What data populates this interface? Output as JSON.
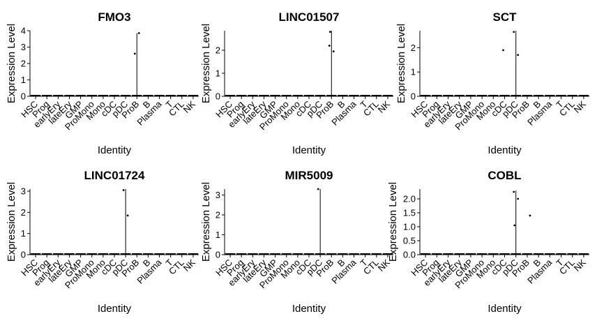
{
  "chart_data": [
    {
      "type": "violin",
      "title": "FMO3",
      "xlabel": "Identity",
      "ylabel": "Expression Level",
      "categories": [
        "HSC",
        "Prog",
        "earlyEry",
        "lateEry",
        "GMP",
        "ProMono",
        "Mono",
        "cDC",
        "pDC",
        "ProB",
        "B",
        "Plasma",
        "T",
        "CTL",
        "NK"
      ],
      "ylim": [
        0,
        4
      ],
      "yticks": [
        0,
        1,
        2,
        3,
        4
      ],
      "ytick_labels": [
        "0",
        "1",
        "2",
        "3",
        "4"
      ],
      "spike": {
        "category": "ProB",
        "max": 3.85
      },
      "points": [
        {
          "category": "ProB",
          "y": 2.6
        },
        {
          "category": "ProB",
          "y": 3.85
        }
      ]
    },
    {
      "type": "violin",
      "title": "LINC01507",
      "xlabel": "Identity",
      "ylabel": "Expression Level",
      "categories": [
        "HSC",
        "Prog",
        "earlyEry",
        "lateEry",
        "GMP",
        "ProMono",
        "Mono",
        "cDC",
        "pDC",
        "ProB",
        "B",
        "Plasma",
        "T",
        "CTL",
        "NK"
      ],
      "ylim": [
        0,
        2.85
      ],
      "yticks": [
        0,
        1,
        2
      ],
      "ytick_labels": [
        "0",
        "1",
        "2"
      ],
      "spike": {
        "category": "ProB",
        "max": 2.85
      },
      "points": [
        {
          "category": "ProB",
          "y": 2.2
        },
        {
          "category": "ProB",
          "y": 1.95
        },
        {
          "category": "ProB",
          "y": 2.8
        }
      ]
    },
    {
      "type": "violin",
      "title": "SCT",
      "xlabel": "Identity",
      "ylabel": "Expression Level",
      "categories": [
        "HSC",
        "Prog",
        "earlyEry",
        "lateEry",
        "GMP",
        "ProMono",
        "Mono",
        "cDC",
        "pDC",
        "ProB",
        "B",
        "Plasma",
        "T",
        "CTL",
        "NK"
      ],
      "ylim": [
        0,
        2.7
      ],
      "yticks": [
        0,
        1,
        2
      ],
      "ytick_labels": [
        "0",
        "1",
        "2"
      ],
      "spike": {
        "category": "pDC",
        "max": 2.7
      },
      "points": [
        {
          "category": "pDC",
          "y": 2.65
        },
        {
          "category": "pDC",
          "y": 1.7
        },
        {
          "category": "cDC",
          "y": 1.9
        }
      ]
    },
    {
      "type": "violin",
      "title": "LINC01724",
      "xlabel": "Identity",
      "ylabel": "Expression Level",
      "categories": [
        "HSC",
        "Prog",
        "earlyEry",
        "lateEry",
        "GMP",
        "ProMono",
        "Mono",
        "cDC",
        "pDC",
        "ProB",
        "B",
        "Plasma",
        "T",
        "CTL",
        "NK"
      ],
      "ylim": [
        0,
        3.1
      ],
      "yticks": [
        0,
        1,
        2,
        3
      ],
      "ytick_labels": [
        "0",
        "1",
        "2",
        "3"
      ],
      "spike": {
        "category": "pDC",
        "max": 3.1
      },
      "points": [
        {
          "category": "pDC",
          "y": 3.05
        },
        {
          "category": "pDC",
          "y": 1.85
        }
      ]
    },
    {
      "type": "violin",
      "title": "MIR5009",
      "xlabel": "Identity",
      "ylabel": "Expression Level",
      "categories": [
        "HSC",
        "Prog",
        "earlyEry",
        "lateEry",
        "GMP",
        "ProMono",
        "Mono",
        "cDC",
        "pDC",
        "ProB",
        "B",
        "Plasma",
        "T",
        "CTL",
        "NK"
      ],
      "ylim": [
        0,
        3.3
      ],
      "yticks": [
        0,
        1,
        2,
        3
      ],
      "ytick_labels": [
        "0",
        "1",
        "2",
        "3"
      ],
      "spike": {
        "category": "pDC",
        "max": 3.3
      },
      "points": [
        {
          "category": "pDC",
          "y": 3.3
        }
      ]
    },
    {
      "type": "violin",
      "title": "COBL",
      "xlabel": "Identity",
      "ylabel": "Expression Level",
      "categories": [
        "HSC",
        "Prog",
        "earlyEry",
        "lateEry",
        "GMP",
        "ProMono",
        "Mono",
        "cDC",
        "pDC",
        "ProB",
        "B",
        "Plasma",
        "T",
        "CTL",
        "NK"
      ],
      "ylim": [
        0,
        2.35
      ],
      "yticks": [
        0,
        0.5,
        1,
        1.5,
        2
      ],
      "ytick_labels": [
        "0.0",
        "0.5",
        "1.0",
        "1.5",
        "2.0"
      ],
      "spike": {
        "category": "pDC",
        "max": 2.3
      },
      "points": [
        {
          "category": "pDC",
          "y": 2.25
        },
        {
          "category": "pDC",
          "y": 2.0
        },
        {
          "category": "pDC",
          "y": 1.05
        },
        {
          "category": "ProB",
          "y": 1.4
        }
      ]
    }
  ],
  "colors": {
    "ink": "#000000",
    "background": "#ffffff"
  }
}
